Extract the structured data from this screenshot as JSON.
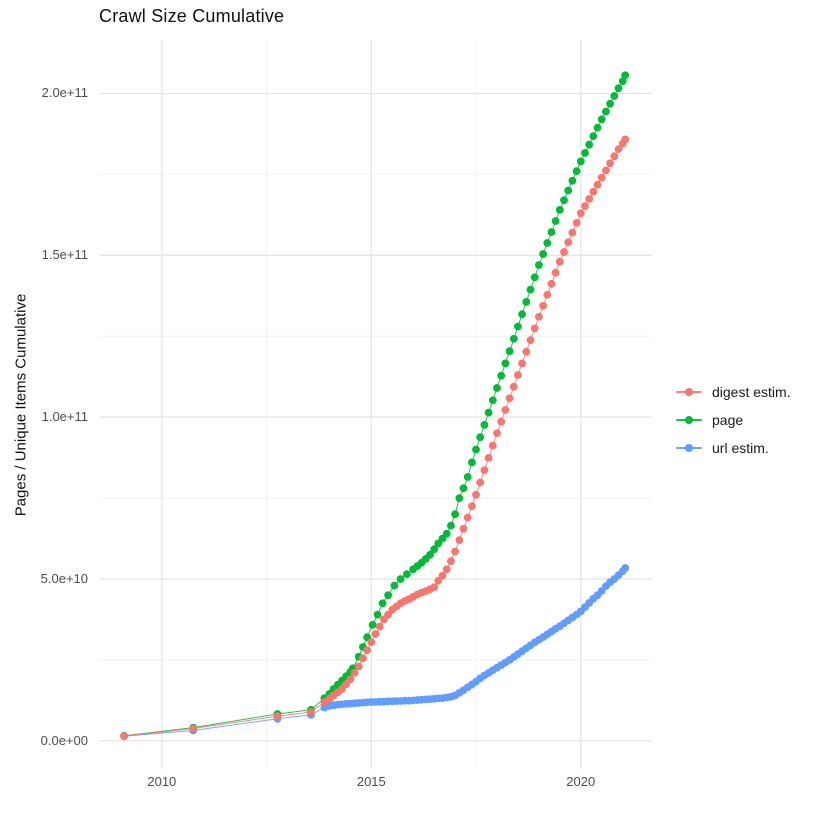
{
  "title": "Crawl Size Cumulative",
  "chart_data": {
    "type": "scatter",
    "title": "Crawl Size Cumulative",
    "xlabel": "",
    "ylabel": "Pages / Unique Items Cumulative",
    "value_unit": "billions (1e9)",
    "grid": true,
    "legend_position": "right",
    "x_breaks": [
      2010,
      2015,
      2020
    ],
    "x_tick_labels": [
      "2010",
      "2015",
      "2020"
    ],
    "x_minor_breaks": [
      2012.5,
      2017.5
    ],
    "y_breaks": [
      0,
      50,
      100,
      150,
      200
    ],
    "y_tick_labels": [
      "0.0e+00",
      "5.0e+10",
      "1.0e+11",
      "1.5e+11",
      "2.0e+11"
    ],
    "y_minor_breaks": [
      25,
      75,
      125,
      175
    ],
    "x_domain": [
      2008.5,
      2021.7
    ],
    "y_domain": [
      -8.7,
      216.5
    ],
    "z_order": [
      2,
      1,
      0
    ],
    "series": [
      {
        "name": "digest estim.",
        "color": "#F8766D",
        "points": [
          [
            2009.1,
            1.5
          ],
          [
            2010.75,
            3.8
          ],
          [
            2012.76,
            7.6
          ],
          [
            2013.56,
            8.9
          ],
          [
            2013.88,
            12.0
          ],
          [
            2014.0,
            13.0
          ],
          [
            2014.1,
            14.0
          ],
          [
            2014.2,
            15.0
          ],
          [
            2014.3,
            16.0
          ],
          [
            2014.4,
            17.5
          ],
          [
            2014.5,
            19.0
          ],
          [
            2014.6,
            21.0
          ],
          [
            2014.7,
            23.0
          ],
          [
            2014.8,
            25.5
          ],
          [
            2014.9,
            28.0
          ],
          [
            2015.0,
            30.5
          ],
          [
            2015.1,
            33.0
          ],
          [
            2015.2,
            35.3
          ],
          [
            2015.3,
            37.5
          ],
          [
            2015.4,
            39.0
          ],
          [
            2015.5,
            40.5
          ],
          [
            2015.6,
            41.5
          ],
          [
            2015.7,
            42.5
          ],
          [
            2015.8,
            43.2
          ],
          [
            2015.9,
            43.8
          ],
          [
            2016.0,
            44.5
          ],
          [
            2016.1,
            45.2
          ],
          [
            2016.2,
            45.8
          ],
          [
            2016.3,
            46.3
          ],
          [
            2016.4,
            46.8
          ],
          [
            2016.5,
            47.5
          ],
          [
            2016.6,
            49.5
          ],
          [
            2016.7,
            51.0
          ],
          [
            2016.8,
            53.0
          ],
          [
            2016.9,
            55.5
          ],
          [
            2017.0,
            58.5
          ],
          [
            2017.1,
            62.0
          ],
          [
            2017.2,
            65.5
          ],
          [
            2017.3,
            69.0
          ],
          [
            2017.4,
            72.5
          ],
          [
            2017.5,
            76.0
          ],
          [
            2017.6,
            79.8
          ],
          [
            2017.7,
            83.6
          ],
          [
            2017.8,
            87.4
          ],
          [
            2017.9,
            91.2
          ],
          [
            2018.0,
            95.0
          ],
          [
            2018.1,
            98.6
          ],
          [
            2018.2,
            102.2
          ],
          [
            2018.3,
            105.8
          ],
          [
            2018.4,
            109.4
          ],
          [
            2018.5,
            113.0
          ],
          [
            2018.6,
            116.6
          ],
          [
            2018.7,
            120.2
          ],
          [
            2018.8,
            123.8
          ],
          [
            2018.9,
            127.4
          ],
          [
            2019.0,
            131.0
          ],
          [
            2019.1,
            134.4
          ],
          [
            2019.2,
            137.8
          ],
          [
            2019.3,
            141.2
          ],
          [
            2019.4,
            144.6
          ],
          [
            2019.5,
            148.0
          ],
          [
            2019.6,
            151.0
          ],
          [
            2019.7,
            154.0
          ],
          [
            2019.8,
            157.0
          ],
          [
            2019.9,
            160.0
          ],
          [
            2020.0,
            163.0
          ],
          [
            2020.1,
            165.2
          ],
          [
            2020.2,
            167.4
          ],
          [
            2020.3,
            169.6
          ],
          [
            2020.4,
            171.8
          ],
          [
            2020.5,
            174.0
          ],
          [
            2020.6,
            176.2
          ],
          [
            2020.7,
            178.4
          ],
          [
            2020.8,
            180.6
          ],
          [
            2020.9,
            182.8
          ],
          [
            2021.0,
            184.5
          ],
          [
            2021.06,
            185.8
          ]
        ]
      },
      {
        "name": "page",
        "color": "#00BA38",
        "points": [
          [
            2009.1,
            1.6
          ],
          [
            2010.75,
            4.1
          ],
          [
            2012.76,
            8.3
          ],
          [
            2013.56,
            9.6
          ],
          [
            2013.88,
            13.2
          ],
          [
            2014.0,
            14.5
          ],
          [
            2014.1,
            16.0
          ],
          [
            2014.2,
            17.3
          ],
          [
            2014.3,
            18.6
          ],
          [
            2014.4,
            20.0
          ],
          [
            2014.5,
            21.3
          ],
          [
            2014.56,
            22.4
          ],
          [
            2014.7,
            26.0
          ],
          [
            2014.8,
            29.0
          ],
          [
            2014.9,
            32.0
          ],
          [
            2015.03,
            35.8
          ],
          [
            2015.15,
            39.0
          ],
          [
            2015.27,
            42.5
          ],
          [
            2015.4,
            45.0
          ],
          [
            2015.55,
            48.0
          ],
          [
            2015.7,
            50.0
          ],
          [
            2015.85,
            51.5
          ],
          [
            2016.0,
            53.0
          ],
          [
            2016.1,
            54.0
          ],
          [
            2016.2,
            55.0
          ],
          [
            2016.3,
            56.2
          ],
          [
            2016.4,
            57.5
          ],
          [
            2016.5,
            59.2
          ],
          [
            2016.6,
            61.0
          ],
          [
            2016.7,
            62.5
          ],
          [
            2016.8,
            64.0
          ],
          [
            2016.9,
            66.5
          ],
          [
            2017.0,
            70.0
          ],
          [
            2017.1,
            75.0
          ],
          [
            2017.2,
            78.0
          ],
          [
            2017.3,
            81.5
          ],
          [
            2017.4,
            86.0
          ],
          [
            2017.5,
            90.0
          ],
          [
            2017.6,
            93.8
          ],
          [
            2017.7,
            97.6
          ],
          [
            2017.8,
            101.4
          ],
          [
            2017.9,
            105.2
          ],
          [
            2018.0,
            109.0
          ],
          [
            2018.1,
            112.8
          ],
          [
            2018.2,
            116.6
          ],
          [
            2018.3,
            120.4
          ],
          [
            2018.4,
            124.2
          ],
          [
            2018.5,
            128.0
          ],
          [
            2018.6,
            131.8
          ],
          [
            2018.7,
            135.6
          ],
          [
            2018.8,
            139.4
          ],
          [
            2018.9,
            143.2
          ],
          [
            2019.0,
            147.0
          ],
          [
            2019.1,
            150.4
          ],
          [
            2019.2,
            153.8
          ],
          [
            2019.3,
            157.2
          ],
          [
            2019.4,
            160.6
          ],
          [
            2019.5,
            164.0
          ],
          [
            2019.6,
            167.0
          ],
          [
            2019.7,
            170.0
          ],
          [
            2019.8,
            173.0
          ],
          [
            2019.9,
            176.0
          ],
          [
            2020.0,
            179.0
          ],
          [
            2020.1,
            181.6
          ],
          [
            2020.2,
            184.2
          ],
          [
            2020.3,
            186.8
          ],
          [
            2020.4,
            189.4
          ],
          [
            2020.5,
            192.0
          ],
          [
            2020.6,
            194.4
          ],
          [
            2020.7,
            196.8
          ],
          [
            2020.8,
            199.2
          ],
          [
            2020.9,
            201.6
          ],
          [
            2021.0,
            203.8
          ],
          [
            2021.06,
            205.6
          ]
        ]
      },
      {
        "name": "url estim.",
        "color": "#619CFF",
        "points": [
          [
            2009.1,
            1.4
          ],
          [
            2010.75,
            3.2
          ],
          [
            2012.76,
            6.8
          ],
          [
            2013.56,
            8.0
          ],
          [
            2013.88,
            10.3
          ],
          [
            2014.0,
            10.8
          ],
          [
            2014.1,
            11.0
          ],
          [
            2014.2,
            11.2
          ],
          [
            2014.3,
            11.3
          ],
          [
            2014.4,
            11.4
          ],
          [
            2014.5,
            11.5
          ],
          [
            2014.6,
            11.6
          ],
          [
            2014.7,
            11.7
          ],
          [
            2014.8,
            11.8
          ],
          [
            2014.9,
            11.9
          ],
          [
            2015.0,
            12.0
          ],
          [
            2015.1,
            12.0
          ],
          [
            2015.2,
            12.1
          ],
          [
            2015.3,
            12.1
          ],
          [
            2015.4,
            12.2
          ],
          [
            2015.5,
            12.2
          ],
          [
            2015.6,
            12.3
          ],
          [
            2015.7,
            12.3
          ],
          [
            2015.8,
            12.4
          ],
          [
            2015.9,
            12.4
          ],
          [
            2016.0,
            12.5
          ],
          [
            2016.1,
            12.6
          ],
          [
            2016.2,
            12.7
          ],
          [
            2016.3,
            12.8
          ],
          [
            2016.4,
            12.9
          ],
          [
            2016.5,
            13.0
          ],
          [
            2016.6,
            13.1
          ],
          [
            2016.7,
            13.2
          ],
          [
            2016.8,
            13.4
          ],
          [
            2016.9,
            13.6
          ],
          [
            2017.0,
            14.0
          ],
          [
            2017.1,
            14.8
          ],
          [
            2017.2,
            15.6
          ],
          [
            2017.3,
            16.5
          ],
          [
            2017.4,
            17.4
          ],
          [
            2017.5,
            18.3
          ],
          [
            2017.6,
            19.3
          ],
          [
            2017.7,
            20.2
          ],
          [
            2017.8,
            21.0
          ],
          [
            2017.9,
            21.8
          ],
          [
            2018.0,
            22.6
          ],
          [
            2018.1,
            23.4
          ],
          [
            2018.2,
            24.2
          ],
          [
            2018.3,
            25.0
          ],
          [
            2018.4,
            25.9
          ],
          [
            2018.5,
            26.8
          ],
          [
            2018.6,
            27.7
          ],
          [
            2018.7,
            28.6
          ],
          [
            2018.8,
            29.5
          ],
          [
            2018.9,
            30.4
          ],
          [
            2019.0,
            31.2
          ],
          [
            2019.1,
            32.0
          ],
          [
            2019.2,
            32.9
          ],
          [
            2019.3,
            33.8
          ],
          [
            2019.4,
            34.6
          ],
          [
            2019.5,
            35.4
          ],
          [
            2019.6,
            36.3
          ],
          [
            2019.7,
            37.2
          ],
          [
            2019.8,
            38.1
          ],
          [
            2019.9,
            39.0
          ],
          [
            2020.0,
            40.0
          ],
          [
            2020.1,
            41.3
          ],
          [
            2020.2,
            42.6
          ],
          [
            2020.3,
            43.9
          ],
          [
            2020.4,
            45.0
          ],
          [
            2020.5,
            46.3
          ],
          [
            2020.6,
            47.8
          ],
          [
            2020.7,
            49.0
          ],
          [
            2020.8,
            50.0
          ],
          [
            2020.9,
            51.2
          ],
          [
            2021.0,
            52.4
          ],
          [
            2021.06,
            53.4
          ]
        ]
      }
    ]
  }
}
